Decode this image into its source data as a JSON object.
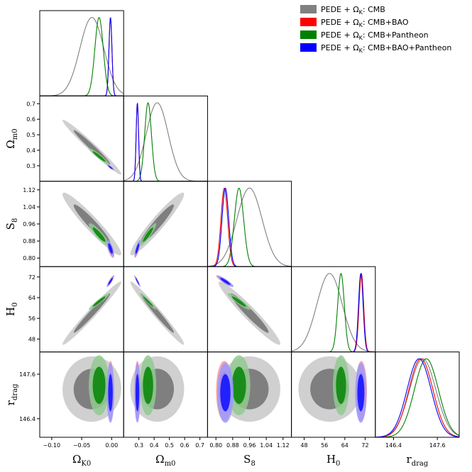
{
  "chart_data": {
    "type": "corner",
    "title": "",
    "parameters": [
      {
        "key": "Ok",
        "label": "Ω",
        "sub": "K0",
        "range": [
          -0.12,
          0.02
        ],
        "ticks": [
          -0.1,
          -0.05,
          0.0
        ],
        "tick_labels": [
          "−0.10",
          "−0.05",
          "0.00"
        ]
      },
      {
        "key": "Om",
        "label": "Ω",
        "sub": "m0",
        "range": [
          0.2,
          0.75
        ],
        "ticks": [
          0.3,
          0.4,
          0.5,
          0.6,
          0.7
        ],
        "tick_labels": [
          "0.3",
          "0.4",
          "0.5",
          "0.6",
          "0.7"
        ]
      },
      {
        "key": "S8",
        "label": "S",
        "sub": "8",
        "range": [
          0.76,
          1.16
        ],
        "ticks": [
          0.8,
          0.88,
          0.96,
          1.04,
          1.12
        ],
        "tick_labels": [
          "0.80",
          "0.88",
          "0.96",
          "1.04",
          "1.12"
        ]
      },
      {
        "key": "H0",
        "label": "H",
        "sub": "0",
        "range": [
          43.0,
          76.0
        ],
        "ticks": [
          48,
          56,
          64,
          72
        ],
        "tick_labels": [
          "48",
          "56",
          "64",
          "72"
        ]
      },
      {
        "key": "rd",
        "label": "r",
        "sub": "drag",
        "range": [
          145.9,
          148.2
        ],
        "ticks": [
          146.4,
          147.6
        ],
        "tick_labels": [
          "146.4",
          "147.6"
        ]
      }
    ],
    "series": [
      {
        "name": "PEDE + Ω_K: CMB",
        "legend_prefix": "PEDE + Ω",
        "legend_sub": "K",
        "legend_suffix": ": CMB",
        "line_color": "#808080",
        "fill_outer": "#c8c8c8",
        "fill_inner": "#7a7a7a",
        "mean": [
          -0.033,
          0.42,
          0.96,
          58.0,
          147.2
        ],
        "sigma": [
          0.02,
          0.072,
          0.06,
          5.0,
          0.36
        ],
        "corr": [
          [
            1,
            -0.98,
            -0.95,
            0.98,
            0.02
          ],
          [
            -0.98,
            1,
            0.95,
            -0.98,
            0
          ],
          [
            -0.95,
            0.95,
            1,
            -0.96,
            0
          ],
          [
            0.98,
            -0.98,
            -0.96,
            1,
            0
          ],
          [
            0.02,
            0,
            0,
            0,
            1
          ]
        ]
      },
      {
        "name": "PEDE + Ω_K: CMB+BAO",
        "legend_prefix": "PEDE + Ω",
        "legend_sub": "K",
        "legend_suffix": ": CMB+BAO",
        "line_color": "#ff0000",
        "fill_outer": "#ff9999",
        "fill_inner": "#ff1a1a",
        "mean": [
          -0.002,
          0.29,
          0.84,
          70.5,
          147.15
        ],
        "sigma": [
          0.0025,
          0.008,
          0.016,
          0.9,
          0.33
        ],
        "corr": [
          [
            1,
            -0.9,
            -0.7,
            0.9,
            0
          ],
          [
            -0.9,
            1,
            0.8,
            -0.95,
            0
          ],
          [
            -0.7,
            0.8,
            1,
            -0.9,
            0
          ],
          [
            0.9,
            -0.95,
            -0.9,
            1,
            0
          ],
          [
            0,
            0,
            0,
            0,
            1
          ]
        ]
      },
      {
        "name": "PEDE + Ω_K: CMB+Pantheon",
        "legend_prefix": "PEDE + Ω",
        "legend_sub": "K",
        "legend_suffix": ": CMB+Pantheon",
        "line_color": "#008000",
        "fill_outer": "#92c992",
        "fill_inner": "#138a13",
        "mean": [
          -0.021,
          0.36,
          0.91,
          62.5,
          147.3
        ],
        "sigma": [
          0.007,
          0.022,
          0.022,
          1.3,
          0.33
        ],
        "corr": [
          [
            1,
            -0.95,
            -0.9,
            0.95,
            0
          ],
          [
            -0.95,
            1,
            0.92,
            -0.97,
            0
          ],
          [
            -0.9,
            0.92,
            1,
            -0.93,
            0
          ],
          [
            0.95,
            -0.97,
            -0.93,
            1,
            0
          ],
          [
            0,
            0,
            0,
            0,
            1
          ]
        ]
      },
      {
        "name": "PEDE + Ω_K: CMB+BAO+Pantheon",
        "legend_prefix": "PEDE + Ω",
        "legend_sub": "K",
        "legend_suffix": ": CMB+BAO+Pantheon",
        "line_color": "#0000ff",
        "fill_outer": "#9999ff",
        "fill_inner": "#1a1aff",
        "mean": [
          -0.002,
          0.29,
          0.845,
          70.3,
          147.1
        ],
        "sigma": [
          0.0025,
          0.008,
          0.016,
          0.9,
          0.33
        ],
        "corr": [
          [
            1,
            -0.9,
            -0.7,
            0.9,
            0
          ],
          [
            -0.9,
            1,
            0.8,
            -0.95,
            0
          ],
          [
            -0.7,
            0.8,
            1,
            -0.9,
            0
          ],
          [
            0.9,
            -0.95,
            -0.9,
            1,
            0
          ],
          [
            0,
            0,
            0,
            0,
            1
          ]
        ]
      }
    ],
    "legend_position": "top-right",
    "grid": false
  }
}
